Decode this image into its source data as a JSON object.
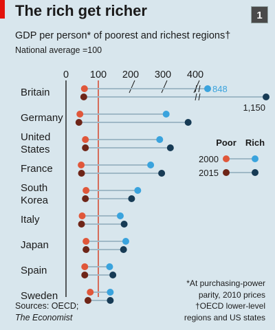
{
  "header": {
    "title": "The rich get richer",
    "subtitle": "GDP per person* of poorest and richest regions†",
    "subnote": "National average =100",
    "chart_number": "1"
  },
  "colors": {
    "background": "#d8e6ed",
    "accent": "#e3120b",
    "poor_2000": "#e0573a",
    "poor_2015": "#6e2518",
    "rich_2000": "#3aa3dd",
    "rich_2015": "#173b55",
    "connector": "#9fb8c6",
    "reference_line": "#d64d35"
  },
  "legend": {
    "poor_label": "Poor",
    "rich_label": "Rich",
    "year_2000": "2000",
    "year_2015": "2015"
  },
  "footnote": {
    "line1": "*At purchasing-power",
    "line2": "parity, 2010 prices",
    "line3": "†OECD lower-level",
    "line4": "regions and US states"
  },
  "source": {
    "prefix": "Sources: OECD;",
    "publication": "The Economist"
  },
  "chart_data": {
    "type": "dot",
    "xlim": [
      0,
      400
    ],
    "xticks": [
      "0",
      "100",
      "200",
      "300",
      "400"
    ],
    "reference_value": 100,
    "axis_break_value": 390,
    "categories": [
      [
        "Britain"
      ],
      [
        "Germany"
      ],
      [
        "United",
        "States"
      ],
      [
        "France"
      ],
      [
        "South",
        "Korea"
      ],
      [
        "Italy"
      ],
      [
        "Japan"
      ],
      [
        "Spain"
      ],
      [
        "Sweden"
      ]
    ],
    "series": [
      {
        "name": "Poor 2000",
        "values": [
          57,
          43,
          60,
          47,
          62,
          50,
          62,
          58,
          75
        ]
      },
      {
        "name": "Poor 2015",
        "values": [
          55,
          40,
          60,
          48,
          60,
          48,
          62,
          58,
          68
        ]
      },
      {
        "name": "Rich 2000",
        "values": [
          848,
          310,
          290,
          262,
          222,
          168,
          185,
          135,
          137
        ]
      },
      {
        "name": "Rich 2015",
        "values": [
          1150,
          378,
          323,
          296,
          203,
          180,
          178,
          145,
          137
        ]
      }
    ],
    "value_labels": [
      {
        "category": "Britain",
        "series": "Rich 2000",
        "text": "848"
      },
      {
        "category": "Britain",
        "series": "Rich 2015",
        "text": "1,150"
      }
    ]
  }
}
